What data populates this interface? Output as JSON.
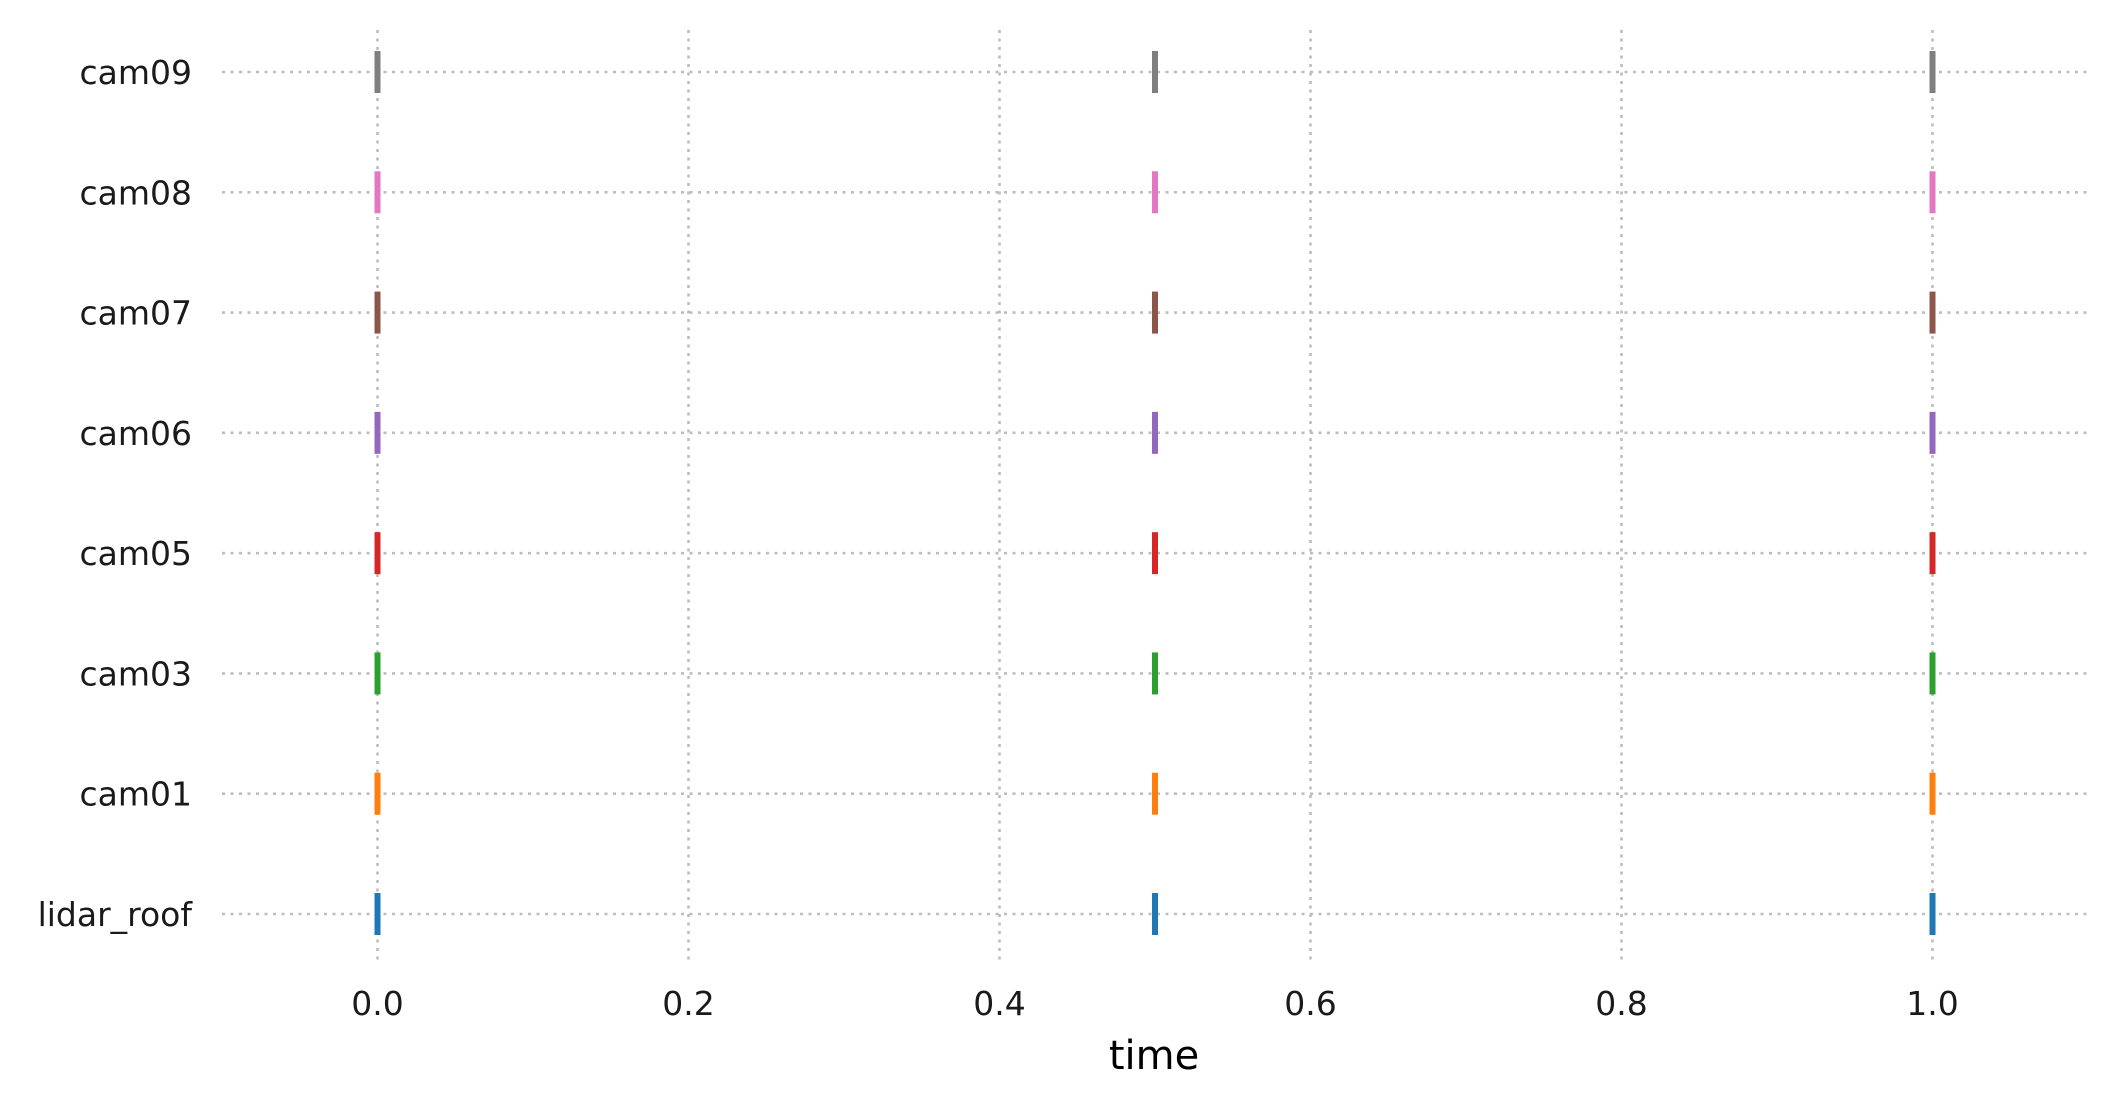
{
  "chart_data": {
    "type": "scatter",
    "title": "",
    "xlabel": "time",
    "ylabel": "",
    "xlim": [
      -0.1,
      1.1
    ],
    "x_ticks": [
      0.0,
      0.2,
      0.4,
      0.6,
      0.8,
      1.0
    ],
    "x_tick_labels": [
      "0.0",
      "0.2",
      "0.4",
      "0.6",
      "0.8",
      "1.0"
    ],
    "grid": true,
    "marker": "vertical-line",
    "categories": [
      "lidar_roof",
      "cam01",
      "cam03",
      "cam05",
      "cam06",
      "cam07",
      "cam08",
      "cam09"
    ],
    "series": [
      {
        "category": "lidar_roof",
        "color": "#1f77b4",
        "x": [
          0.0,
          0.5,
          1.0
        ]
      },
      {
        "category": "cam01",
        "color": "#ff7f0e",
        "x": [
          0.0,
          0.5,
          1.0
        ]
      },
      {
        "category": "cam03",
        "color": "#2ca02c",
        "x": [
          0.0,
          0.5,
          1.0
        ]
      },
      {
        "category": "cam05",
        "color": "#d62728",
        "x": [
          0.0,
          0.5,
          1.0
        ]
      },
      {
        "category": "cam06",
        "color": "#9467bd",
        "x": [
          0.0,
          0.5,
          1.0
        ]
      },
      {
        "category": "cam07",
        "color": "#8c564b",
        "x": [
          0.0,
          0.5,
          1.0
        ]
      },
      {
        "category": "cam08",
        "color": "#e377c2",
        "x": [
          0.0,
          0.5,
          1.0
        ]
      },
      {
        "category": "cam09",
        "color": "#7f7f7f",
        "x": [
          0.0,
          0.5,
          1.0
        ]
      }
    ]
  }
}
